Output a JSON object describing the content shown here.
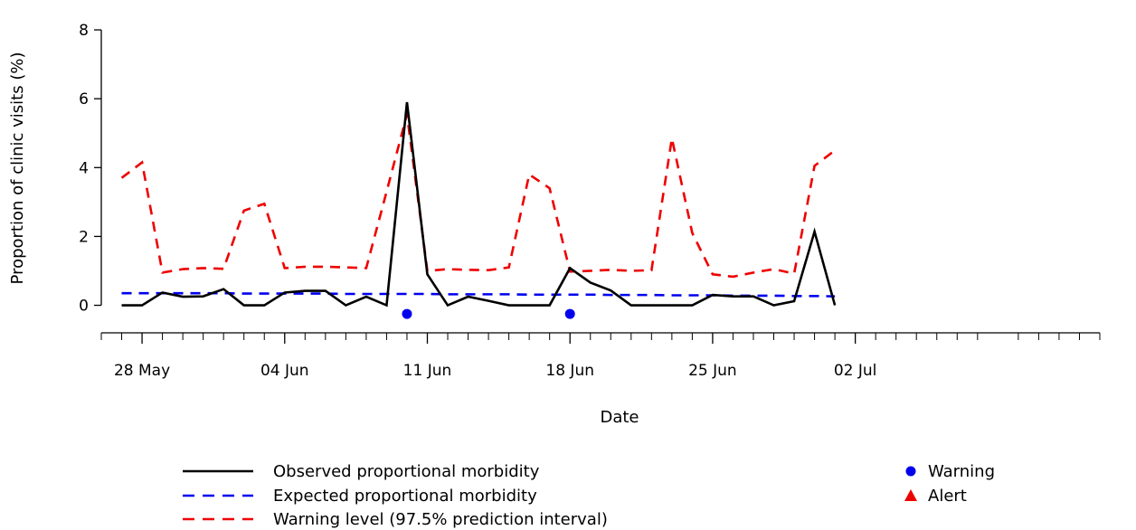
{
  "chart_data": {
    "type": "line",
    "xlabel": "Date",
    "ylabel": "Proportion of clinic visits (%)",
    "ylim": [
      -0.8,
      8.5
    ],
    "yticks": [
      0,
      2,
      4,
      6,
      8
    ],
    "xlim": [
      "2023-05-26",
      "2023-07-14"
    ],
    "xticks": [
      {
        "date": "2023-05-28",
        "label": "28 May"
      },
      {
        "date": "2023-06-04",
        "label": "04 Jun"
      },
      {
        "date": "2023-06-11",
        "label": "11 Jun"
      },
      {
        "date": "2023-06-18",
        "label": "18 Jun"
      },
      {
        "date": "2023-06-25",
        "label": "25 Jun"
      },
      {
        "date": "2023-07-02",
        "label": "02 Jul"
      }
    ],
    "x": [
      "2023-05-27",
      "2023-05-28",
      "2023-05-29",
      "2023-05-30",
      "2023-05-31",
      "2023-06-01",
      "2023-06-02",
      "2023-06-03",
      "2023-06-04",
      "2023-06-05",
      "2023-06-06",
      "2023-06-07",
      "2023-06-08",
      "2023-06-09",
      "2023-06-10",
      "2023-06-11",
      "2023-06-12",
      "2023-06-13",
      "2023-06-14",
      "2023-06-15",
      "2023-06-16",
      "2023-06-17",
      "2023-06-18",
      "2023-06-19",
      "2023-06-20",
      "2023-06-21",
      "2023-06-22",
      "2023-06-23",
      "2023-06-24",
      "2023-06-25",
      "2023-06-26",
      "2023-06-27",
      "2023-06-28",
      "2023-06-29",
      "2023-06-30",
      "2023-07-01"
    ],
    "series": [
      {
        "name": "Observed proportional morbidity",
        "color": "#000000",
        "style": "solid",
        "values": [
          0,
          0,
          0.37,
          0.25,
          0.26,
          0.47,
          0,
          0,
          0.37,
          0.42,
          0.42,
          0,
          0.25,
          0,
          5.9,
          0.9,
          0,
          0.25,
          0.13,
          0,
          0,
          0,
          1.08,
          0.66,
          0.43,
          0,
          0,
          0,
          0,
          0.3,
          0.26,
          0.26,
          0,
          0.12,
          2.14,
          0
        ]
      },
      {
        "name": "Expected proportional morbidity",
        "color": "#0000ee",
        "style": "dashed",
        "values": [
          0.35,
          0.35,
          0.35,
          0.35,
          0.35,
          0.35,
          0.34,
          0.34,
          0.34,
          0.34,
          0.34,
          0.33,
          0.33,
          0.33,
          0.33,
          0.33,
          0.32,
          0.32,
          0.32,
          0.32,
          0.31,
          0.31,
          0.31,
          0.31,
          0.3,
          0.3,
          0.3,
          0.29,
          0.29,
          0.29,
          0.28,
          0.28,
          0.28,
          0.27,
          0.27,
          0.26
        ]
      },
      {
        "name": "Warning level (97.5% prediction interval)",
        "color": "#ee0000",
        "style": "dashed",
        "values": [
          3.7,
          4.15,
          0.95,
          1.05,
          1.08,
          1.06,
          2.75,
          2.95,
          1.08,
          1.12,
          1.12,
          1.1,
          1.08,
          3.3,
          5.55,
          1.0,
          1.05,
          1.03,
          1.02,
          1.1,
          3.8,
          3.4,
          0.98,
          1.0,
          1.03,
          1.0,
          1.02,
          4.85,
          2.1,
          0.9,
          0.83,
          0.95,
          1.05,
          0.92,
          4.05,
          4.5
        ]
      }
    ],
    "markers": [
      {
        "name": "Warning",
        "shape": "circle",
        "color": "#0000ee",
        "points": [
          {
            "x": "2023-06-10",
            "y": -0.25
          },
          {
            "x": "2023-06-18",
            "y": -0.25
          }
        ]
      },
      {
        "name": "Alert",
        "shape": "triangle",
        "color": "#ee0000",
        "points": []
      }
    ],
    "legend": {
      "lines": [
        {
          "label": "Observed proportional morbidity",
          "color": "#000000",
          "style": "solid"
        },
        {
          "label": "Expected proportional morbidity",
          "color": "#0000ee",
          "style": "dashed"
        },
        {
          "label": "Warning level (97.5% prediction interval)",
          "color": "#ee0000",
          "style": "dashed"
        }
      ],
      "markers": [
        {
          "label": "Warning",
          "color": "#0000ee",
          "shape": "circle"
        },
        {
          "label": "Alert",
          "color": "#ee0000",
          "shape": "triangle"
        }
      ],
      "placement": "bottom"
    },
    "grid": false
  }
}
